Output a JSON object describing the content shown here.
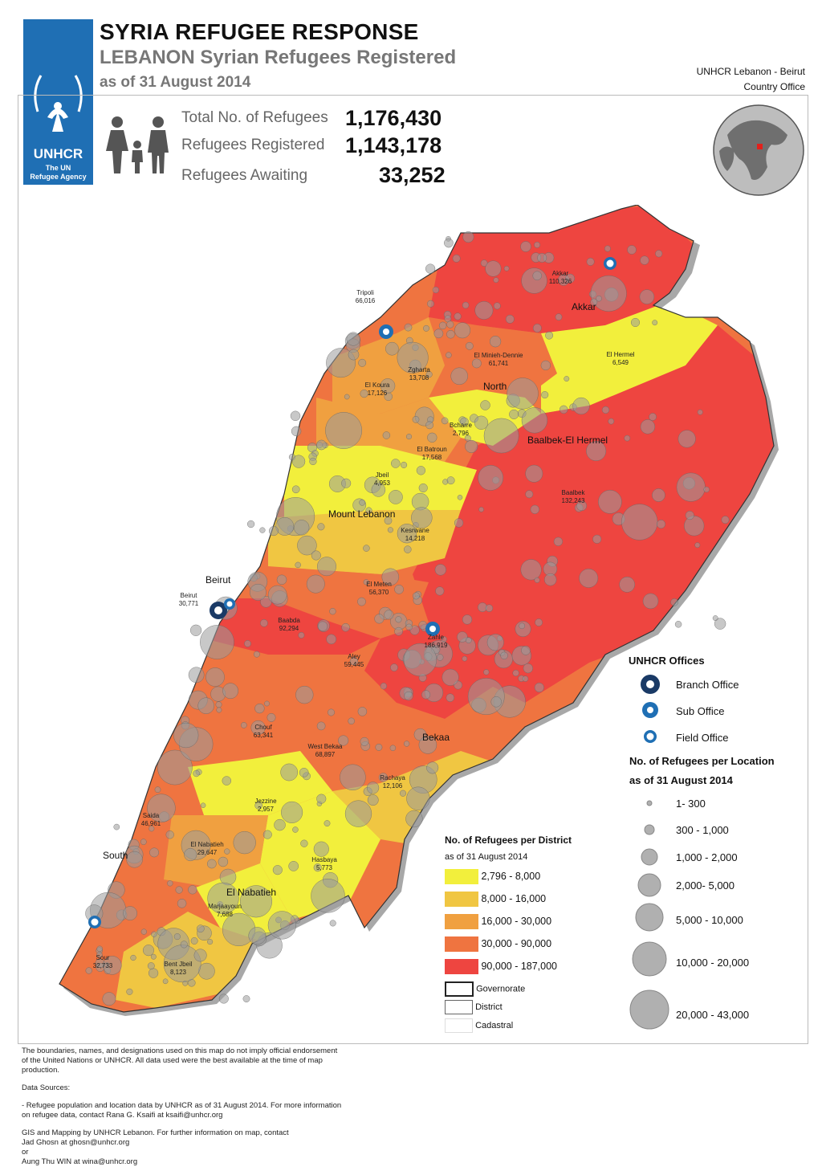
{
  "header": {
    "title": "SYRIA REFUGEE RESPONSE",
    "subtitle": "LEBANON Syrian Refugees Registered",
    "date": "as of 31 August 2014",
    "office_line1": "UNHCR Lebanon - Beirut",
    "office_line2": "Country Office"
  },
  "logo": {
    "name": "UNHCR",
    "tagline1": "The UN",
    "tagline2": "Refugee Agency"
  },
  "stats": {
    "total_label": "Total No. of Refugees",
    "total_value": "1,176,430",
    "registered_label": "Refugees Registered",
    "registered_value": "1,143,178",
    "awaiting_label": "Refugees Awaiting",
    "awaiting_value": "33,252"
  },
  "map": {
    "governorates": [
      "Akkar",
      "North",
      "Baalbek-El Hermel",
      "Mount Lebanon",
      "Beirut",
      "Bekaa",
      "South",
      "El Nabatieh"
    ],
    "districts": [
      {
        "name": "Akkar",
        "value": "110,326"
      },
      {
        "name": "Tripoli",
        "value": "66,016"
      },
      {
        "name": "El Minieh-Dennie",
        "value": "61,741"
      },
      {
        "name": "Zgharta",
        "value": "13,708"
      },
      {
        "name": "El Koura",
        "value": "17,126"
      },
      {
        "name": "El Hermel",
        "value": "6,549"
      },
      {
        "name": "Bcharre",
        "value": "2,796"
      },
      {
        "name": "El Batroun",
        "value": "17,568"
      },
      {
        "name": "Jbeil",
        "value": "4,953"
      },
      {
        "name": "Baalbek",
        "value": "132,243"
      },
      {
        "name": "Kesrwane",
        "value": "14,218"
      },
      {
        "name": "El Meten",
        "value": "56,370"
      },
      {
        "name": "Beirut",
        "value": "30,771"
      },
      {
        "name": "Baabda",
        "value": "92,294"
      },
      {
        "name": "Zahle",
        "value": "186,919"
      },
      {
        "name": "Aley",
        "value": "59,445"
      },
      {
        "name": "Chouf",
        "value": "63,341"
      },
      {
        "name": "West Bekaa",
        "value": "68,897"
      },
      {
        "name": "Rachaya",
        "value": "12,106"
      },
      {
        "name": "Jezzine",
        "value": "2,957"
      },
      {
        "name": "Saida",
        "value": "46,961"
      },
      {
        "name": "El Nabatieh",
        "value": "29,647"
      },
      {
        "name": "Hasbaya",
        "value": "5,773"
      },
      {
        "name": "Marjaayoun",
        "value": "7,688"
      },
      {
        "name": "Sour",
        "value": "32,733"
      },
      {
        "name": "Bent Jbeil",
        "value": "8,123"
      }
    ],
    "colors": {
      "c1": "#f2ef3c",
      "c2": "#f0c642",
      "c3": "#f0a040",
      "c4": "#ef7440",
      "c5": "#ee4540",
      "bubble": "#9a9a9a",
      "unhcr_blue": "#1f6fb4"
    }
  },
  "legend_offices": {
    "title": "UNHCR Offices",
    "items": [
      "Branch Office",
      "Sub Office",
      "Field Office"
    ]
  },
  "legend_bubbles": {
    "title1": "No. of Refugees per Location",
    "title2": "as of 31 August 2014",
    "items": [
      "1- 300",
      "300 - 1,000",
      "1,000 - 2,000",
      "2,000- 5,000",
      "5,000 - 10,000",
      "10,000 - 20,000",
      "20,000 - 43,000"
    ]
  },
  "legend_district": {
    "title1": "No. of Refugees per District",
    "title2": "as of 31 August 2014",
    "classes": [
      "2,796 - 8,000",
      "8,000 - 16,000",
      "16,000 - 30,000",
      "30,000 - 90,000",
      "90,000 - 187,000"
    ],
    "boundaries": [
      "Governorate",
      "District",
      "Cadastral"
    ]
  },
  "footer": {
    "disclaimer1": "The boundaries, names, and designations used on this map do not imply official endorsement",
    "disclaimer2": "of the United Nations or UNHCR. All data used were the best available at the time of map",
    "disclaimer3": "production.",
    "sources_title": "Data Sources:",
    "source1": "- Refugee population and location data by UNHCR as of 31 August 2014. For more information",
    "source2": "on refugee data, contact Rana G. Ksaifi at ksaifi@unhcr.org",
    "gis1": "GIS and Mapping by UNHCR Lebanon. For further information on map, contact",
    "gis2": "Jad Ghosn at ghosn@unhcr.org",
    "gis3": "or",
    "gis4": "Aung Thu WIN at wina@unhcr.org"
  }
}
